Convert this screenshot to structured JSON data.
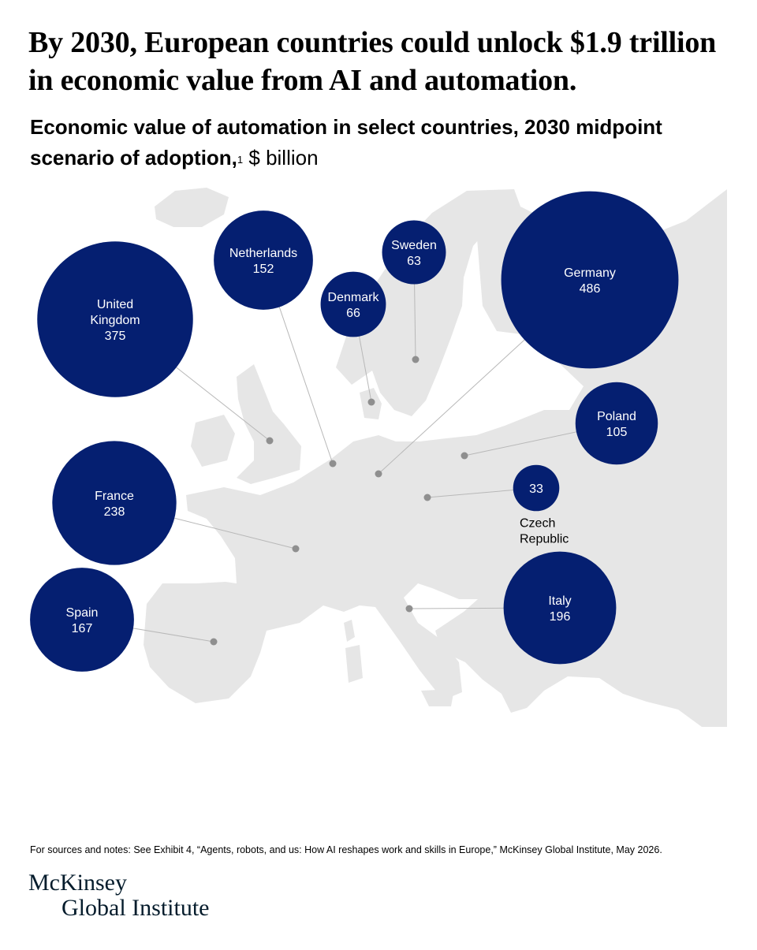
{
  "headline": "By 2030, European countries could unlock $1.9 trillion in economic value from AI and automation.",
  "subtitle": {
    "main": "Economic value of automation in select countries, 2030 midpoint scenario of adoption,",
    "note_ref": "1",
    "units": " $ billion"
  },
  "colors": {
    "bubble": "#051f71",
    "land": "#e6e6e6",
    "leader": "#b8b8b8",
    "dot": "#8f8f8f",
    "bubble_text": "#ffffff"
  },
  "map": {
    "region": "Europe",
    "countries": [
      {
        "name": "United Kingdom",
        "label_lines": [
          "United",
          "Kingdom"
        ],
        "value": 375,
        "value_text": "375"
      },
      {
        "name": "Netherlands",
        "label_lines": [
          "Netherlands"
        ],
        "value": 152,
        "value_text": "152"
      },
      {
        "name": "Sweden",
        "label_lines": [
          "Sweden"
        ],
        "value": 63,
        "value_text": "63"
      },
      {
        "name": "Denmark",
        "label_lines": [
          "Denmark"
        ],
        "value": 66,
        "value_text": "66"
      },
      {
        "name": "Germany",
        "label_lines": [
          "Germany"
        ],
        "value": 486,
        "value_text": "486"
      },
      {
        "name": "Poland",
        "label_lines": [
          "Poland"
        ],
        "value": 105,
        "value_text": "105"
      },
      {
        "name": "Czech Republic",
        "label_lines": [
          "Czech",
          "Republic"
        ],
        "value": 33,
        "value_text": "33"
      },
      {
        "name": "France",
        "label_lines": [
          "France"
        ],
        "value": 238,
        "value_text": "238"
      },
      {
        "name": "Spain",
        "label_lines": [
          "Spain"
        ],
        "value": 167,
        "value_text": "167"
      },
      {
        "name": "Italy",
        "label_lines": [
          "Italy"
        ],
        "value": 196,
        "value_text": "196"
      }
    ]
  },
  "source": "For sources and notes: See Exhibit 4, “Agents, robots, and us: How AI reshapes work and skills in Europe,” McKinsey Global Institute, May 2026.",
  "logo": {
    "line1": "McKinsey",
    "line2": "Global Institute"
  }
}
